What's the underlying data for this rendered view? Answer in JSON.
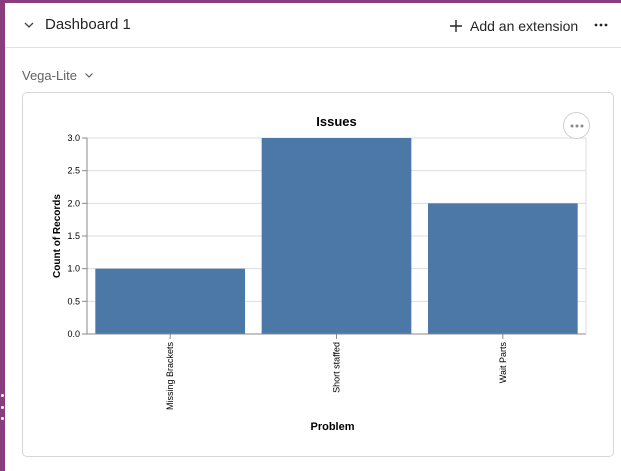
{
  "header": {
    "title": "Dashboard 1",
    "add_extension_label": "Add an extension",
    "more_icon": "more-horizontal-icon",
    "collapse_icon": "chevron-down-icon"
  },
  "mode_selector": {
    "value": "Vega-Lite",
    "icon": "chevron-down-icon"
  },
  "colors": {
    "bar": "#4c78a8",
    "rail": "#8a3d7e",
    "grid": "#dddddd",
    "axis": "#888888"
  },
  "chart_data": {
    "type": "bar",
    "title": "Issues",
    "xlabel": "Problem",
    "ylabel": "Count of Records",
    "categories": [
      "Missing Brackets",
      "Short staffed",
      "Wait Parts"
    ],
    "values": [
      1,
      3,
      2
    ],
    "ylim": [
      0,
      3
    ],
    "yticks": [
      "0.0",
      "0.5",
      "1.0",
      "1.5",
      "2.0",
      "2.5",
      "3.0"
    ],
    "grid": true,
    "legend": "none"
  }
}
